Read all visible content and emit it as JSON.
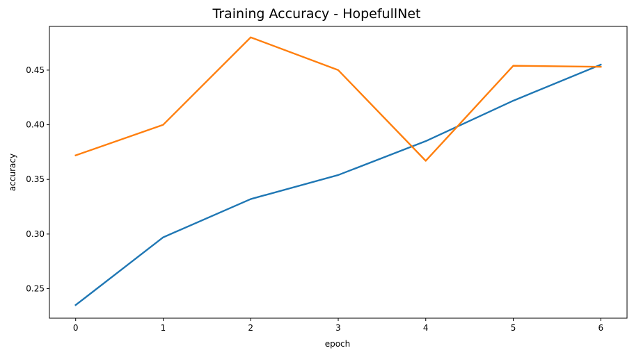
{
  "chart_data": {
    "type": "line",
    "title": "Training Accuracy - HopefullNet",
    "xlabel": "epoch",
    "ylabel": "accuracy",
    "x": [
      0,
      1,
      2,
      3,
      4,
      5,
      6
    ],
    "xticks": [
      "0",
      "1",
      "2",
      "3",
      "4",
      "5",
      "6"
    ],
    "yticks": [
      "0.25",
      "0.30",
      "0.35",
      "0.40",
      "0.45"
    ],
    "xlim": [
      -0.3,
      6.3
    ],
    "ylim": [
      0.223,
      0.49
    ],
    "grid": false,
    "series": [
      {
        "color": "#1f77b4",
        "values": [
          0.235,
          0.297,
          0.332,
          0.354,
          0.385,
          0.422,
          0.455
        ]
      },
      {
        "color": "#ff7f0e",
        "values": [
          0.372,
          0.4,
          0.48,
          0.45,
          0.367,
          0.454,
          0.453
        ]
      }
    ]
  }
}
